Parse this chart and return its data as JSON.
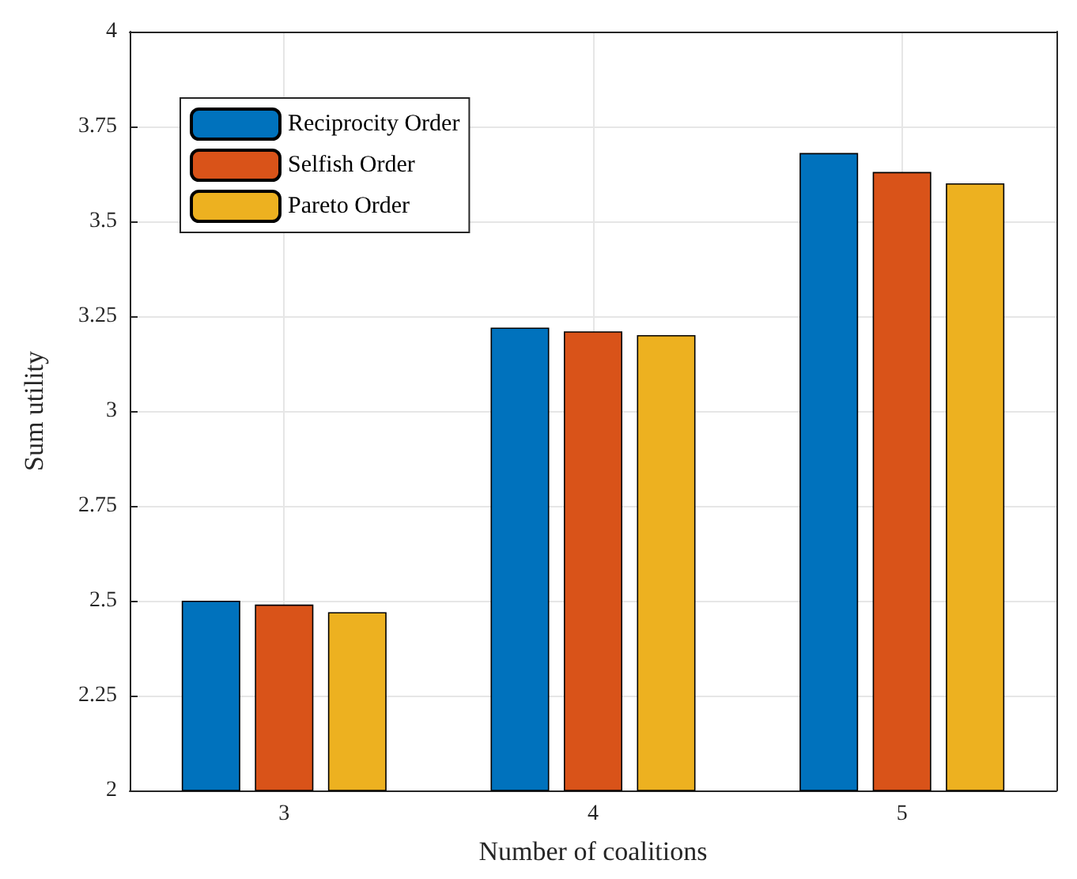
{
  "chart_data": {
    "type": "bar",
    "xlabel": "Number of coalitions",
    "ylabel": "Sum utility",
    "x": [
      3,
      4,
      5
    ],
    "xlim": [
      2.5,
      5.5
    ],
    "xticks": [
      3,
      4,
      5
    ],
    "ylim": [
      2,
      4
    ],
    "yticks": [
      2,
      2.25,
      2.5,
      2.75,
      3,
      3.25,
      3.5,
      3.75,
      4
    ],
    "series": [
      {
        "name": "Reciprocity Order",
        "color": "#0072bd",
        "values": [
          2.5,
          3.22,
          3.68
        ]
      },
      {
        "name": "Selfish Order",
        "color": "#d95319",
        "values": [
          2.49,
          3.21,
          3.63
        ]
      },
      {
        "name": "Pareto Order",
        "color": "#edb120",
        "values": [
          2.47,
          3.2,
          3.6
        ]
      }
    ],
    "grid": true,
    "legend": "top left"
  }
}
